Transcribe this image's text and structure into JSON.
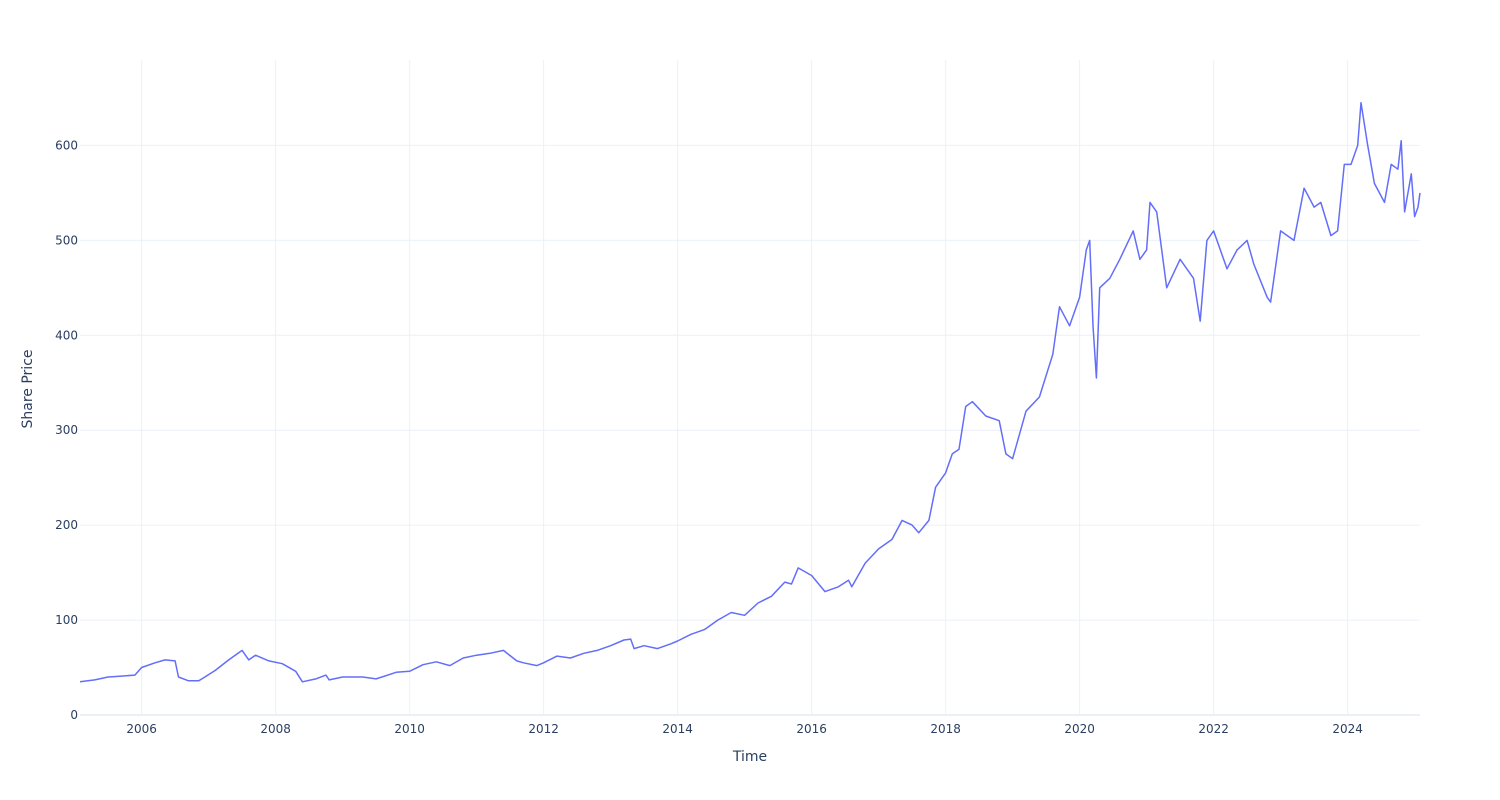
{
  "chart_data": {
    "type": "line",
    "title": "",
    "xlabel": "Time",
    "ylabel": "Share Price",
    "xlim": [
      2005.08,
      2025.08
    ],
    "ylim": [
      0,
      690
    ],
    "grid": true,
    "legend": "none",
    "x_ticks": [
      2006,
      2008,
      2010,
      2012,
      2014,
      2016,
      2018,
      2020,
      2022,
      2024
    ],
    "x_tick_labels": [
      "2006",
      "2008",
      "2010",
      "2012",
      "2014",
      "2016",
      "2018",
      "2020",
      "2022",
      "2024"
    ],
    "y_ticks": [
      0,
      100,
      200,
      300,
      400,
      500,
      600
    ],
    "y_tick_labels": [
      "0",
      "100",
      "200",
      "300",
      "400",
      "500",
      "600"
    ],
    "colors": {
      "series": "#636efa",
      "grid": "#ebf0f8",
      "text": "#2a3f5f"
    },
    "series": [
      {
        "x": [
          2005.08,
          2005.3,
          2005.5,
          2005.7,
          2005.9,
          2006.0,
          2006.2,
          2006.35,
          2006.5,
          2006.55,
          2006.7,
          2006.85,
          2006.9,
          2007.1,
          2007.3,
          2007.5,
          2007.6,
          2007.7,
          2007.9,
          2008.1,
          2008.3,
          2008.4,
          2008.6,
          2008.75,
          2008.8,
          2009.0,
          2009.3,
          2009.5,
          2009.8,
          2010.0,
          2010.2,
          2010.4,
          2010.6,
          2010.8,
          2011.0,
          2011.2,
          2011.4,
          2011.6,
          2011.7,
          2011.9,
          2012.0,
          2012.2,
          2012.4,
          2012.6,
          2012.8,
          2013.0,
          2013.2,
          2013.3,
          2013.35,
          2013.5,
          2013.7,
          2013.9,
          2014.0,
          2014.2,
          2014.4,
          2014.6,
          2014.8,
          2015.0,
          2015.2,
          2015.4,
          2015.6,
          2015.7,
          2015.8,
          2016.0,
          2016.2,
          2016.4,
          2016.55,
          2016.6,
          2016.8,
          2017.0,
          2017.2,
          2017.35,
          2017.5,
          2017.6,
          2017.75,
          2017.85,
          2018.0,
          2018.1,
          2018.2,
          2018.3,
          2018.4,
          2018.6,
          2018.8,
          2018.9,
          2019.0,
          2019.2,
          2019.4,
          2019.6,
          2019.7,
          2019.85,
          2020.0,
          2020.1,
          2020.15,
          2020.2,
          2020.25,
          2020.3,
          2020.45,
          2020.6,
          2020.8,
          2020.9,
          2021.0,
          2021.05,
          2021.15,
          2021.3,
          2021.5,
          2021.7,
          2021.8,
          2021.9,
          2022.0,
          2022.2,
          2022.35,
          2022.5,
          2022.6,
          2022.8,
          2022.85,
          2023.0,
          2023.2,
          2023.35,
          2023.5,
          2023.6,
          2023.75,
          2023.85,
          2023.95,
          2024.05,
          2024.15,
          2024.2,
          2024.3,
          2024.4,
          2024.55,
          2024.65,
          2024.75,
          2024.8,
          2024.85,
          2024.95,
          2025.0,
          2025.05,
          2025.08
        ],
        "values": [
          35,
          37,
          40,
          41,
          42,
          50,
          55,
          58,
          57,
          40,
          36,
          36,
          38,
          47,
          58,
          68,
          58,
          63,
          57,
          54,
          46,
          35,
          38,
          42,
          37,
          40,
          40,
          38,
          45,
          46,
          53,
          56,
          52,
          60,
          63,
          65,
          68,
          57,
          55,
          52,
          55,
          62,
          60,
          65,
          68,
          73,
          79,
          80,
          70,
          73,
          70,
          75,
          78,
          85,
          90,
          100,
          108,
          105,
          118,
          125,
          140,
          138,
          155,
          147,
          130,
          135,
          142,
          135,
          160,
          175,
          185,
          205,
          200,
          192,
          205,
          240,
          255,
          275,
          280,
          325,
          330,
          315,
          310,
          275,
          270,
          320,
          335,
          380,
          430,
          410,
          440,
          490,
          500,
          410,
          355,
          450,
          460,
          480,
          510,
          480,
          490,
          540,
          530,
          450,
          480,
          460,
          415,
          500,
          510,
          470,
          490,
          500,
          475,
          440,
          435,
          510,
          500,
          555,
          535,
          540,
          505,
          510,
          580,
          580,
          600,
          645,
          600,
          560,
          540,
          580,
          575,
          605,
          530,
          570,
          525,
          535,
          550
        ]
      }
    ]
  }
}
